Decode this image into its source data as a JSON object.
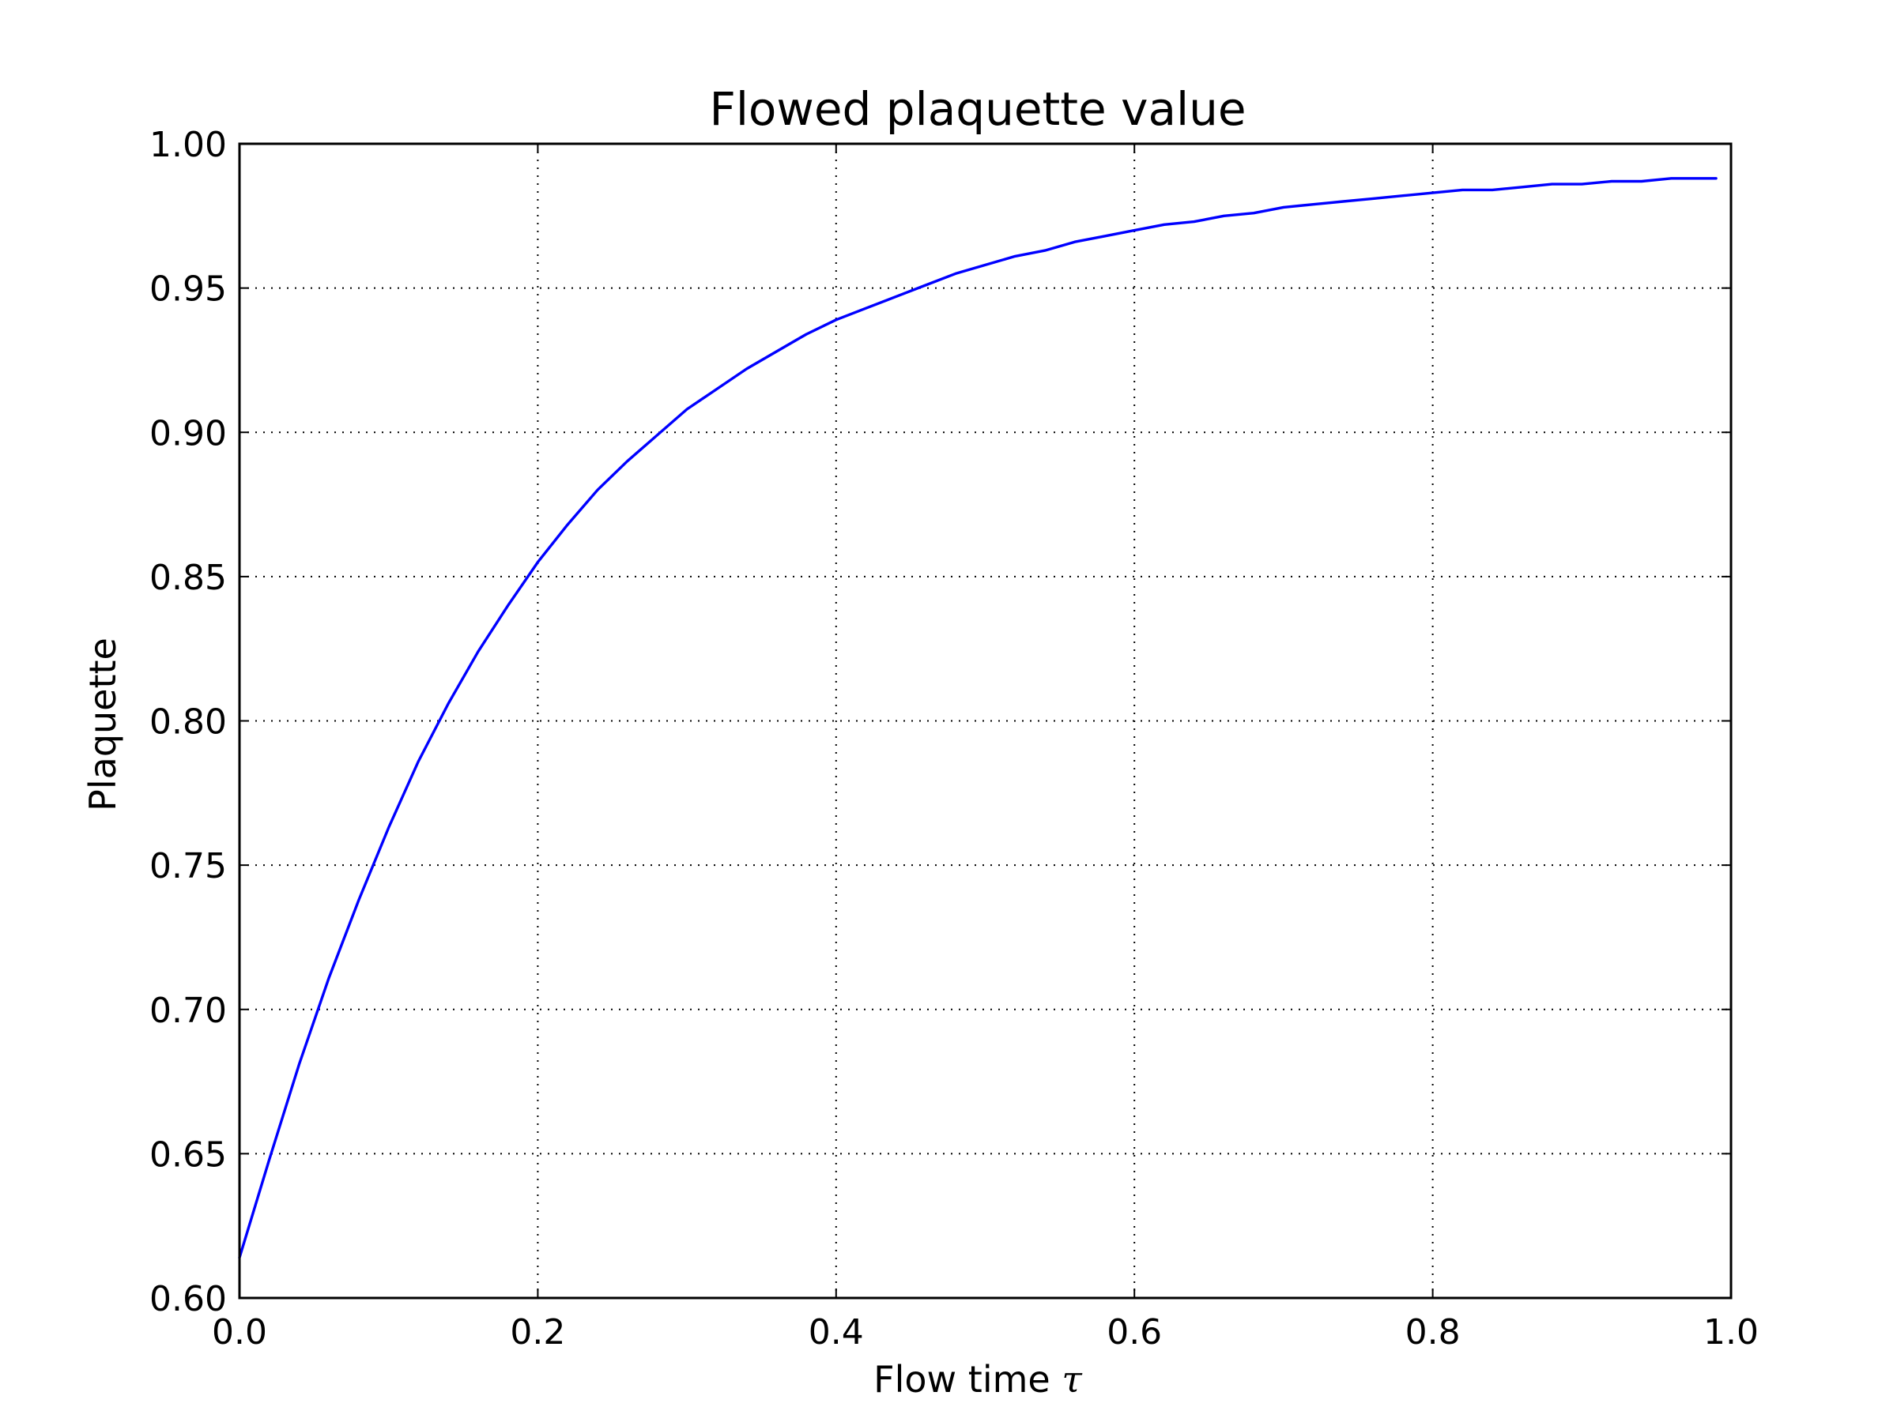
{
  "chart_data": {
    "type": "line",
    "title": "Flowed plaquette value",
    "xlabel": "Flow time",
    "xlabel_symbol": "τ",
    "ylabel": "Plaquette",
    "xlim": [
      0.0,
      1.0
    ],
    "ylim": [
      0.6,
      1.0
    ],
    "x_ticks": [
      "0.0",
      "0.2",
      "0.4",
      "0.6",
      "0.8",
      "1.0"
    ],
    "y_ticks": [
      "0.60",
      "0.65",
      "0.70",
      "0.75",
      "0.80",
      "0.85",
      "0.90",
      "0.95",
      "1.00"
    ],
    "grid": true,
    "legend": "none",
    "series": [
      {
        "color": "#0000ff",
        "x": [
          0.0,
          0.02,
          0.04,
          0.06,
          0.08,
          0.1,
          0.12,
          0.14,
          0.16,
          0.18,
          0.2,
          0.22,
          0.24,
          0.26,
          0.28,
          0.3,
          0.32,
          0.34,
          0.36,
          0.38,
          0.4,
          0.42,
          0.44,
          0.46,
          0.48,
          0.5,
          0.52,
          0.54,
          0.56,
          0.58,
          0.6,
          0.62,
          0.64,
          0.66,
          0.68,
          0.7,
          0.72,
          0.74,
          0.76,
          0.78,
          0.8,
          0.82,
          0.84,
          0.86,
          0.88,
          0.9,
          0.92,
          0.94,
          0.96,
          0.98,
          0.99
        ],
        "y": [
          0.614,
          0.648,
          0.681,
          0.711,
          0.738,
          0.763,
          0.786,
          0.806,
          0.824,
          0.84,
          0.855,
          0.868,
          0.88,
          0.89,
          0.899,
          0.908,
          0.915,
          0.922,
          0.928,
          0.934,
          0.939,
          0.943,
          0.947,
          0.951,
          0.955,
          0.958,
          0.961,
          0.963,
          0.966,
          0.968,
          0.97,
          0.972,
          0.973,
          0.975,
          0.976,
          0.978,
          0.979,
          0.98,
          0.981,
          0.982,
          0.983,
          0.984,
          0.984,
          0.985,
          0.986,
          0.986,
          0.987,
          0.987,
          0.988,
          0.988,
          0.988
        ]
      }
    ]
  }
}
